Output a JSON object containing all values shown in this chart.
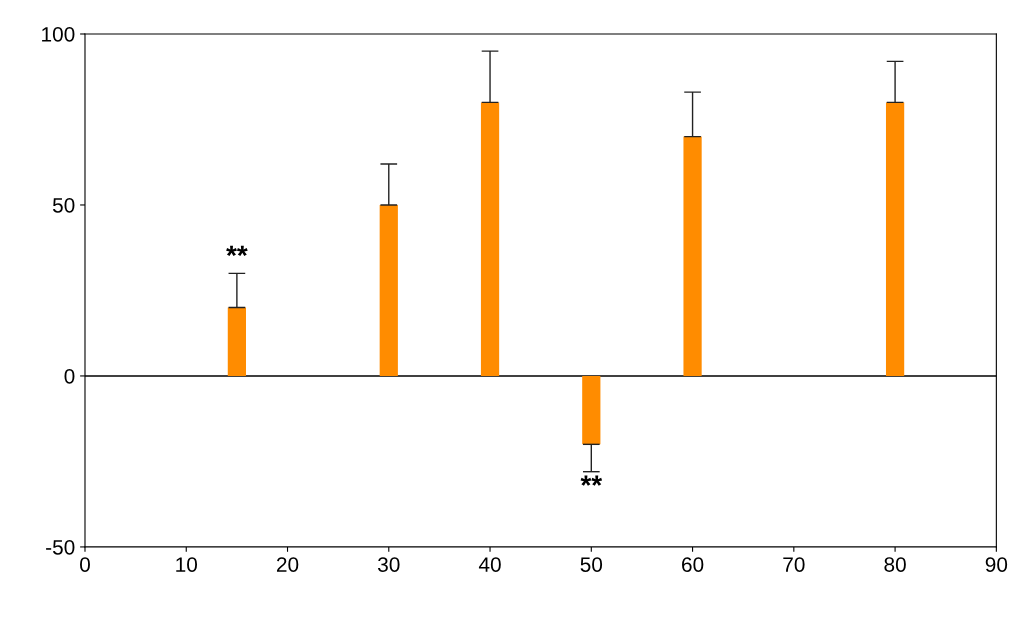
{
  "chart_data": {
    "type": "bar",
    "x": [
      15,
      30,
      40,
      50,
      60,
      80
    ],
    "values": [
      20,
      50,
      80,
      -20,
      70,
      80
    ],
    "errors": [
      [
        20,
        30
      ],
      [
        50,
        62
      ],
      [
        80,
        95
      ],
      [
        -28,
        -20
      ],
      [
        70,
        83
      ],
      [
        80,
        92
      ]
    ],
    "color": "#ff8c00",
    "xlim": [
      0,
      90
    ],
    "xticks": [
      0,
      10,
      20,
      30,
      40,
      50,
      60,
      70,
      80,
      90
    ],
    "ylim": [
      -50,
      100
    ],
    "yticks": [
      -50,
      0,
      50,
      100
    ],
    "ref_lines": [
      {
        "axis": "y",
        "value": 0,
        "color": "#000000"
      }
    ],
    "annotations": [
      {
        "text": "**",
        "x": 15,
        "y": 20
      },
      {
        "text": "**",
        "x": 50,
        "y": -20
      }
    ],
    "grid": false
  }
}
